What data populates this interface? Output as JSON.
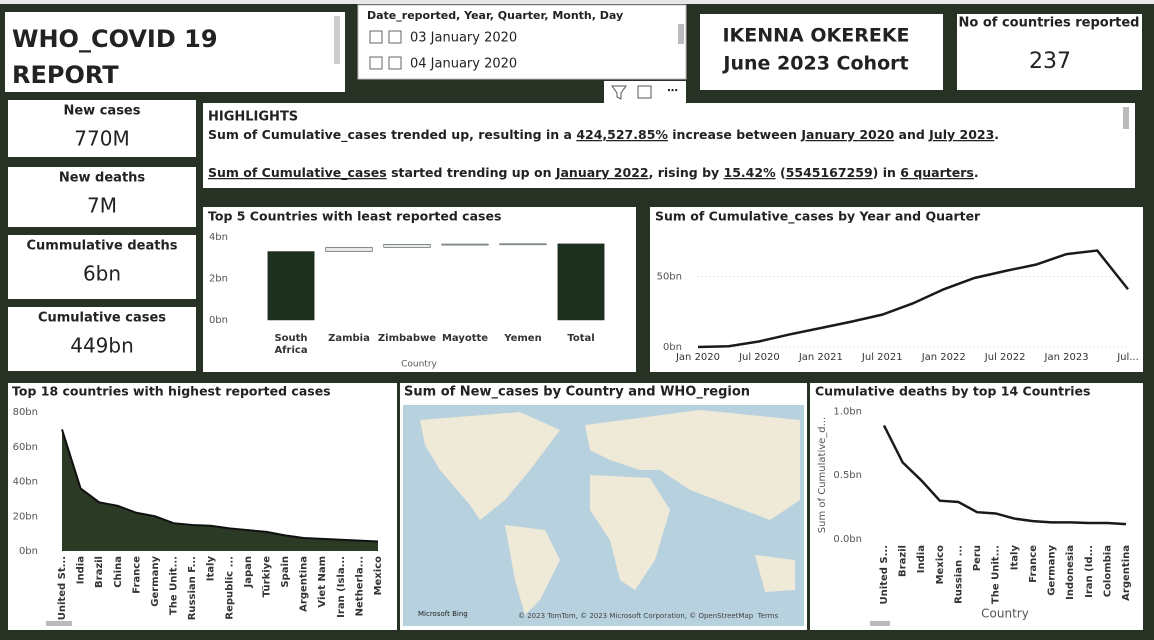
{
  "header": {
    "title_lines": [
      "WHO_COVID 19",
      "REPORT"
    ]
  },
  "slicer": {
    "header": "Date_reported, Year, Quarter, Month, Day",
    "items": [
      "03 January 2020",
      "04 January 2020"
    ]
  },
  "author": {
    "lines": [
      "IKENNA OKEREKE",
      "June 2023 Cohort"
    ]
  },
  "countries_card": {
    "label": "No of countries reported",
    "value": 237
  },
  "cards": [
    {
      "label": "New cases",
      "value": "770M"
    },
    {
      "label": "New deaths",
      "value": "7M"
    },
    {
      "label": "Cummulative deaths",
      "value": "6bn"
    },
    {
      "label": "Cumulative cases",
      "value": "449bn"
    }
  ],
  "highlights": {
    "title": "HIGHLIGHTS",
    "lines": [
      [
        {
          "text": "Sum of Cumulative_cases trended up, resulting in a ",
          "underline": false
        },
        {
          "text": "424,527.85%",
          "underline": true
        },
        {
          "text": " increase between ",
          "underline": false
        },
        {
          "text": "January 2020",
          "underline": true
        },
        {
          "text": " and ",
          "underline": false
        },
        {
          "text": "July 2023",
          "underline": true
        },
        {
          "text": ".",
          "underline": false
        }
      ],
      [
        {
          "text": "Sum of Cumulative_cases",
          "underline": true
        },
        {
          "text": " started trending up on ",
          "underline": false
        },
        {
          "text": "January 2022",
          "underline": true
        },
        {
          "text": ", rising by ",
          "underline": false
        },
        {
          "text": "15.42%",
          "underline": true
        },
        {
          "text": " (",
          "underline": false
        },
        {
          "text": "5545167259",
          "underline": true
        },
        {
          "text": ") in ",
          "underline": false
        },
        {
          "text": "6 quarters",
          "underline": true
        },
        {
          "text": ".",
          "underline": false
        }
      ]
    ]
  },
  "map": {
    "title": "Sum of New_cases by Country and WHO_region",
    "logo": "Microsoft Bing",
    "attribution": "© 2023 TomTom, © 2023 Microsoft Corporation, © OpenStreetMap  Terms"
  },
  "chart_data": [
    {
      "type": "waterfall",
      "title": "Top 5 Countries with least reported cases",
      "x_label": "Country",
      "categories": [
        "South Africa",
        "Zambia",
        "Zimbabwe",
        "Mayotte",
        "Yemen",
        "Total"
      ],
      "values": [
        3.3,
        0.2,
        0.15,
        0.01,
        0.01,
        3.67
      ],
      "show_total": true,
      "color": "#1d3020",
      "increase_color": "#e9e9e9",
      "ylim": [
        0,
        4
      ],
      "yticks": [
        {
          "value": 0,
          "label": "0bn"
        },
        {
          "value": 2,
          "label": "2bn"
        },
        {
          "value": 4,
          "label": "4bn"
        }
      ],
      "grid": false
    },
    {
      "type": "line",
      "title": "Sum of Cumulative_cases by Year and Quarter",
      "categories": [
        "Jan 2020",
        null,
        "Jul 2020",
        null,
        "Jan 2021",
        null,
        "Jul 2021",
        null,
        "Jan 2022",
        null,
        "Jul 2022",
        null,
        "Jan 2023",
        null,
        "Jul..."
      ],
      "values": [
        0.0,
        0.5,
        4,
        9,
        13.5,
        18,
        23,
        31,
        41,
        49,
        54,
        58.5,
        66,
        68.5,
        41
      ],
      "color": "#1a1a1a",
      "ylim": [
        0,
        76
      ],
      "yticks": [
        {
          "value": 0,
          "label": "0bn"
        },
        {
          "value": 50,
          "label": "50bn"
        }
      ],
      "grid": true
    },
    {
      "type": "area",
      "title": "Top 18 countries with highest reported cases",
      "categories": [
        "United St...",
        "India",
        "Brazil",
        "China",
        "France",
        "Germany",
        "The Unit...",
        "Russian F...",
        "Italy",
        "Republic ...",
        "Japan",
        "Türkiye",
        "Spain",
        "Argentina",
        "Viet Nam",
        "Iran (Isla...",
        "Netherla...",
        "Mexico"
      ],
      "values": [
        70,
        36,
        28,
        26,
        22,
        20,
        16,
        15,
        14.5,
        13,
        12,
        11,
        9,
        7.5,
        7,
        6.5,
        6,
        5.5
      ],
      "color": "#2a3a24",
      "ylim": [
        0,
        80
      ],
      "yticks": [
        {
          "value": 0,
          "label": "0bn"
        },
        {
          "value": 20,
          "label": "20bn"
        },
        {
          "value": 40,
          "label": "40bn"
        },
        {
          "value": 60,
          "label": "60bn"
        },
        {
          "value": 80,
          "label": "80bn"
        }
      ],
      "grid": false
    },
    {
      "type": "line",
      "title": "Cumulative deaths by top 14 Countries",
      "x_label": "Country",
      "y_label": "Sum of Cumulative_d...",
      "categories": [
        "United S...",
        "Brazil",
        "India",
        "Mexico",
        "Russian ...",
        "Peru",
        "The Unit...",
        "Italy",
        "France",
        "Germany",
        "Indonesia",
        "Iran (Id...",
        "Colombia",
        "Argentina"
      ],
      "values": [
        0.89,
        0.6,
        0.46,
        0.3,
        0.29,
        0.21,
        0.2,
        0.16,
        0.14,
        0.13,
        0.13,
        0.125,
        0.125,
        0.117
      ],
      "color": "#1a1a1a",
      "ylim": [
        0,
        1.05
      ],
      "yticks": [
        {
          "value": 0,
          "label": "0.0bn"
        },
        {
          "value": 0.5,
          "label": "0.5bn"
        },
        {
          "value": 1,
          "label": "1.0bn"
        }
      ],
      "grid": false
    }
  ]
}
